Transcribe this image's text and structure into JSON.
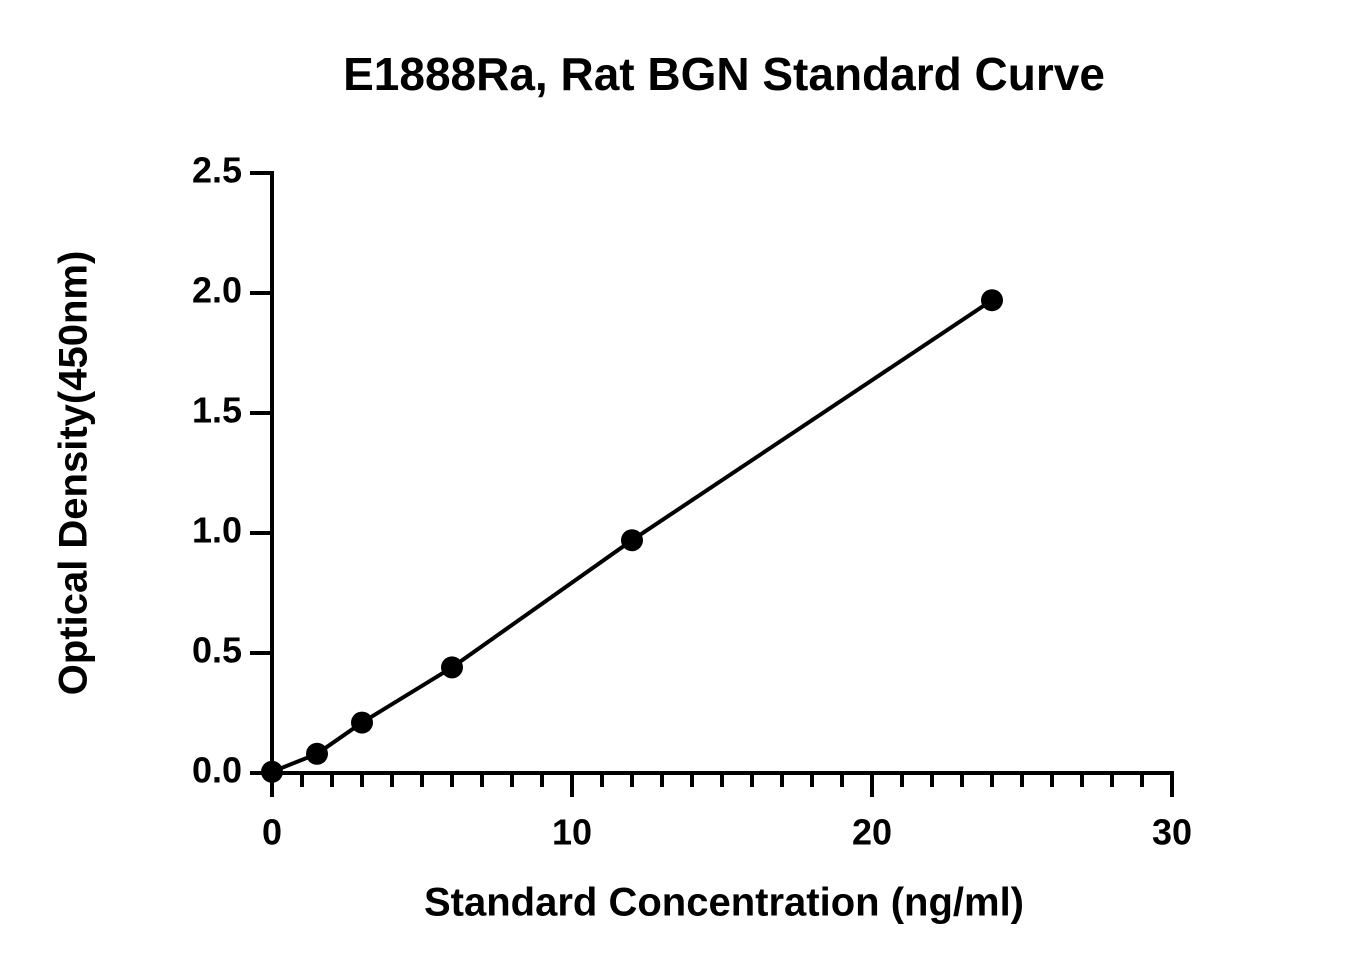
{
  "chart_data": {
    "type": "scatter",
    "title": "E1888Ra, Rat BGN Standard Curve",
    "x_label": "Standard Concentration (ng/ml)",
    "y_label": "Optical Density(450nm)",
    "series": [
      {
        "color": "#000000",
        "x": [
          0,
          1.5,
          3,
          6,
          12,
          24
        ],
        "values": [
          0.005,
          0.08,
          0.21,
          0.44,
          0.97,
          1.97
        ]
      }
    ],
    "xlim": [
      0,
      30
    ],
    "xticks": [
      0,
      10,
      20,
      30
    ],
    "ylim": [
      0,
      2.5
    ],
    "yticks": [
      {
        "value": 0,
        "label": "0.0"
      },
      0.5,
      {
        "value": 1,
        "label": "1.0"
      },
      1.5,
      {
        "value": 2,
        "label": "2.0"
      },
      2.5
    ],
    "grid": false
  }
}
